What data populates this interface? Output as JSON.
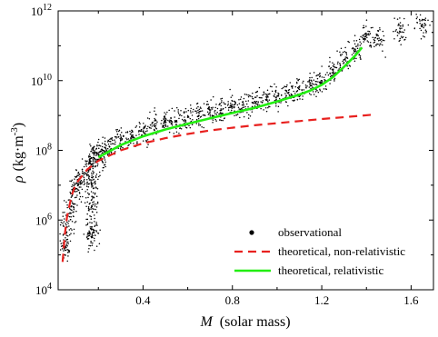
{
  "chart_data": {
    "type": "scatter",
    "xlabel_symbol": "M",
    "xlabel_text": "(solar mass)",
    "ylabel_symbol": "ρ",
    "ylabel_text": "(kg·m",
    "ylabel_exp": "-3",
    "ylabel_close": ")",
    "xlim": [
      0.02,
      1.7
    ],
    "ylim_log10": [
      4,
      12
    ],
    "yscale": "log",
    "x_ticks": [
      0.4,
      0.8,
      1.2,
      1.6
    ],
    "x_tick_labels": [
      "0.4",
      "0.8",
      "1.2",
      "1.6"
    ],
    "y_ticks_log10": [
      4,
      6,
      8,
      10,
      12
    ],
    "y_tick_base": "10",
    "y_tick_exps": [
      "4",
      "6",
      "8",
      "10",
      "12"
    ],
    "legend_position": "bottom-right",
    "series": [
      {
        "name": "observational",
        "kind": "points",
        "color": "#000000",
        "points": [
          [
            0.05,
            5.2
          ],
          [
            0.06,
            5.8
          ],
          [
            0.08,
            6.4
          ],
          [
            0.1,
            6.9
          ],
          [
            0.12,
            7.1
          ],
          [
            0.15,
            7.3
          ],
          [
            0.17,
            7.6
          ],
          [
            0.17,
            7.0
          ],
          [
            0.17,
            6.4
          ],
          [
            0.17,
            5.8
          ],
          [
            0.17,
            5.5
          ],
          [
            0.18,
            7.9
          ],
          [
            0.2,
            7.7
          ],
          [
            0.22,
            8.0
          ],
          [
            0.25,
            8.1
          ],
          [
            0.3,
            8.3
          ],
          [
            0.35,
            8.4
          ],
          [
            0.4,
            8.55
          ],
          [
            0.45,
            8.7
          ],
          [
            0.5,
            8.8
          ],
          [
            0.55,
            8.85
          ],
          [
            0.6,
            8.95
          ],
          [
            0.65,
            9.0
          ],
          [
            0.7,
            9.1
          ],
          [
            0.75,
            9.15
          ],
          [
            0.8,
            9.25
          ],
          [
            0.85,
            9.3
          ],
          [
            0.9,
            9.4
          ],
          [
            0.95,
            9.45
          ],
          [
            1.0,
            9.55
          ],
          [
            1.05,
            9.65
          ],
          [
            1.1,
            9.75
          ],
          [
            1.15,
            9.85
          ],
          [
            1.2,
            10.0
          ],
          [
            1.25,
            10.3
          ],
          [
            1.3,
            10.6
          ],
          [
            1.35,
            10.9
          ],
          [
            1.4,
            11.3
          ],
          [
            1.45,
            11.2
          ],
          [
            1.55,
            11.4
          ],
          [
            1.65,
            11.6
          ]
        ]
      },
      {
        "name": "theoretical, non-relativistic",
        "kind": "line",
        "color": "#e8211f",
        "dash": true,
        "x": [
          0.04,
          0.05,
          0.06,
          0.08,
          0.1,
          0.15,
          0.2,
          0.3,
          0.4,
          0.5,
          0.6,
          0.7,
          0.8,
          0.9,
          1.0,
          1.1,
          1.2,
          1.3,
          1.44
        ],
        "y_log10": [
          4.8,
          5.6,
          6.1,
          6.7,
          7.05,
          7.45,
          7.7,
          8.0,
          8.2,
          8.35,
          8.47,
          8.57,
          8.65,
          8.72,
          8.78,
          8.84,
          8.9,
          8.95,
          9.03
        ]
      },
      {
        "name": "theoretical, relativistic",
        "kind": "line",
        "color": "#22ee11",
        "dash": false,
        "x": [
          0.2,
          0.3,
          0.4,
          0.5,
          0.6,
          0.7,
          0.8,
          0.9,
          1.0,
          1.1,
          1.15,
          1.2,
          1.25,
          1.3,
          1.35,
          1.38
        ],
        "y_log10": [
          7.8,
          8.15,
          8.4,
          8.6,
          8.76,
          8.92,
          9.07,
          9.22,
          9.4,
          9.6,
          9.72,
          9.88,
          10.1,
          10.4,
          10.72,
          10.95
        ]
      }
    ]
  }
}
